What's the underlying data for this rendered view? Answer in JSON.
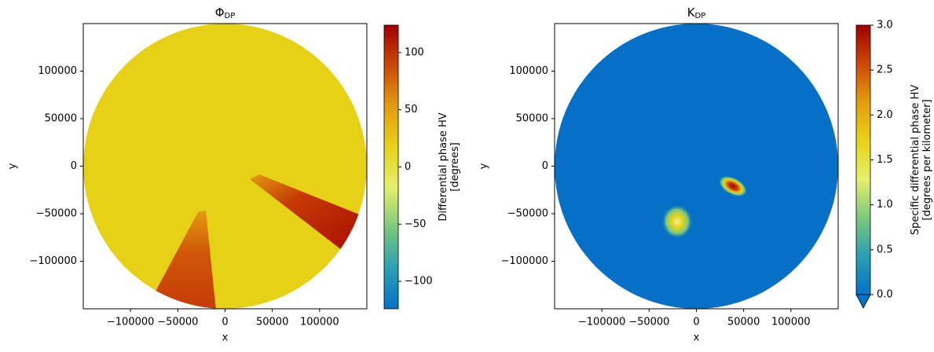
{
  "chart_data": [
    {
      "type": "heatmap",
      "title": "Φ",
      "title_subscript": "DP",
      "x_label": "x",
      "y_label": "y",
      "xlim": [
        -150000,
        150000
      ],
      "ylim": [
        -150000,
        150000
      ],
      "xticks": [
        {
          "value": -100000,
          "label": "−100000"
        },
        {
          "value": -50000,
          "label": "−50000"
        },
        0,
        50000,
        100000
      ],
      "yticks": [
        {
          "value": -100000,
          "label": "−100000"
        },
        {
          "value": -50000,
          "label": "−50000"
        },
        0,
        50000,
        100000
      ],
      "colorbar": {
        "label": [
          "Differential phase HV",
          "[degrees]"
        ],
        "lim": [
          -124,
          124
        ],
        "ticks": [
          {
            "value": -100,
            "label": "−100"
          },
          {
            "value": -50,
            "label": "−50"
          },
          0,
          50,
          100
        ],
        "colors": [
          "#0572c6",
          "#2b9fb3",
          "#7cc87c",
          "#e6ef6c",
          "#e7d218",
          "#e49c10",
          "#cc4808",
          "#a00000"
        ],
        "extend_min": false
      }
    },
    {
      "type": "heatmap",
      "title": "K",
      "title_subscript": "DP",
      "x_label": "x",
      "y_label": "y",
      "xlim": [
        -150000,
        150000
      ],
      "ylim": [
        -150000,
        150000
      ],
      "xticks": [
        {
          "value": -100000,
          "label": "−100000"
        },
        {
          "value": -50000,
          "label": "−50000"
        },
        0,
        50000,
        100000
      ],
      "yticks": [
        {
          "value": -100000,
          "label": "−100000"
        },
        {
          "value": -50000,
          "label": "−50000"
        },
        0,
        50000,
        100000
      ],
      "colorbar": {
        "label": [
          "Specific differential phase HV",
          "[degrees per kilometer]"
        ],
        "lim": [
          0,
          3
        ],
        "ticks": [
          {
            "value": 0,
            "label": "0.0"
          },
          {
            "value": 0.5,
            "label": "0.5"
          },
          {
            "value": 1,
            "label": "1.0"
          },
          {
            "value": 1.5,
            "label": "1.5"
          },
          {
            "value": 2,
            "label": "2.0"
          },
          {
            "value": 2.5,
            "label": "2.5"
          },
          {
            "value": 3,
            "label": "3.0"
          }
        ],
        "colors": [
          "#0572c6",
          "#2b9fb3",
          "#7cc87c",
          "#e6ef6c",
          "#e7d218",
          "#e49c10",
          "#cc4808",
          "#a00000"
        ],
        "extend_min": true
      }
    }
  ]
}
